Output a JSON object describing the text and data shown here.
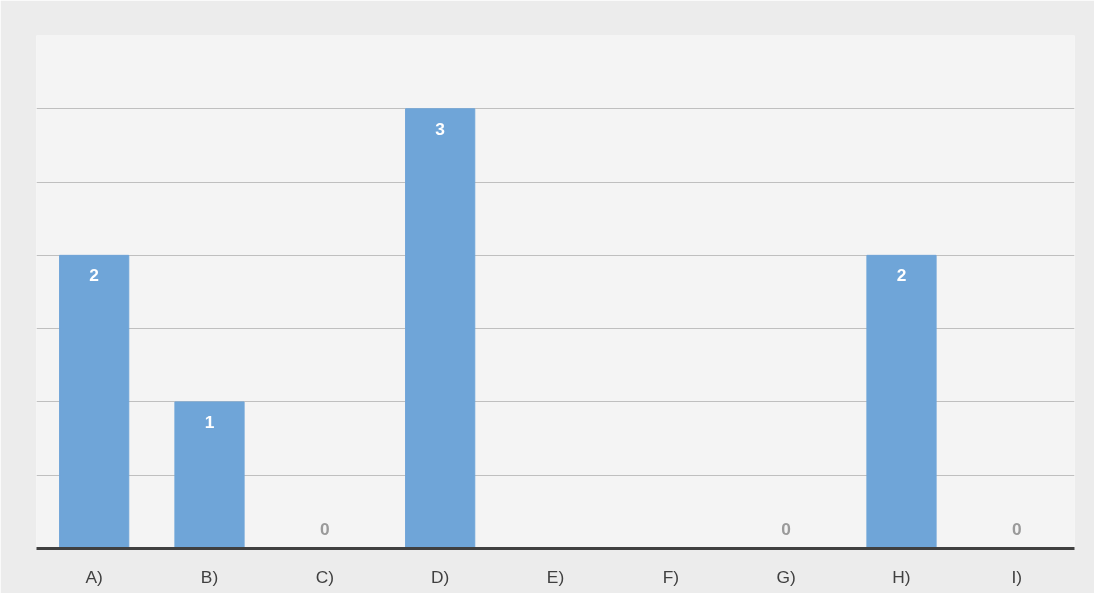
{
  "chart_data": {
    "type": "bar",
    "categories": [
      "A)",
      "B)",
      "C)",
      "D)",
      "E)",
      "F)",
      "G)",
      "H)",
      "I)"
    ],
    "values": [
      2,
      1,
      0,
      3,
      0,
      0,
      0,
      2,
      0
    ],
    "value_labels": [
      "2",
      "1",
      "0",
      "3",
      null,
      null,
      "0",
      "2",
      "0"
    ],
    "color": "#6fa5d8",
    "ylim": [
      0,
      3.5
    ],
    "yticks": [
      {
        "value": 0,
        "label": null
      },
      {
        "value": 0.5,
        "label": null
      },
      {
        "value": 1,
        "label": null
      },
      {
        "value": 1.5,
        "label": null
      },
      {
        "value": 2,
        "label": null
      },
      {
        "value": 2.5,
        "label": null
      },
      {
        "value": 3,
        "label": null
      },
      {
        "value": 3.5,
        "label": null
      }
    ],
    "tick_labels": "x",
    "grid": "y"
  }
}
